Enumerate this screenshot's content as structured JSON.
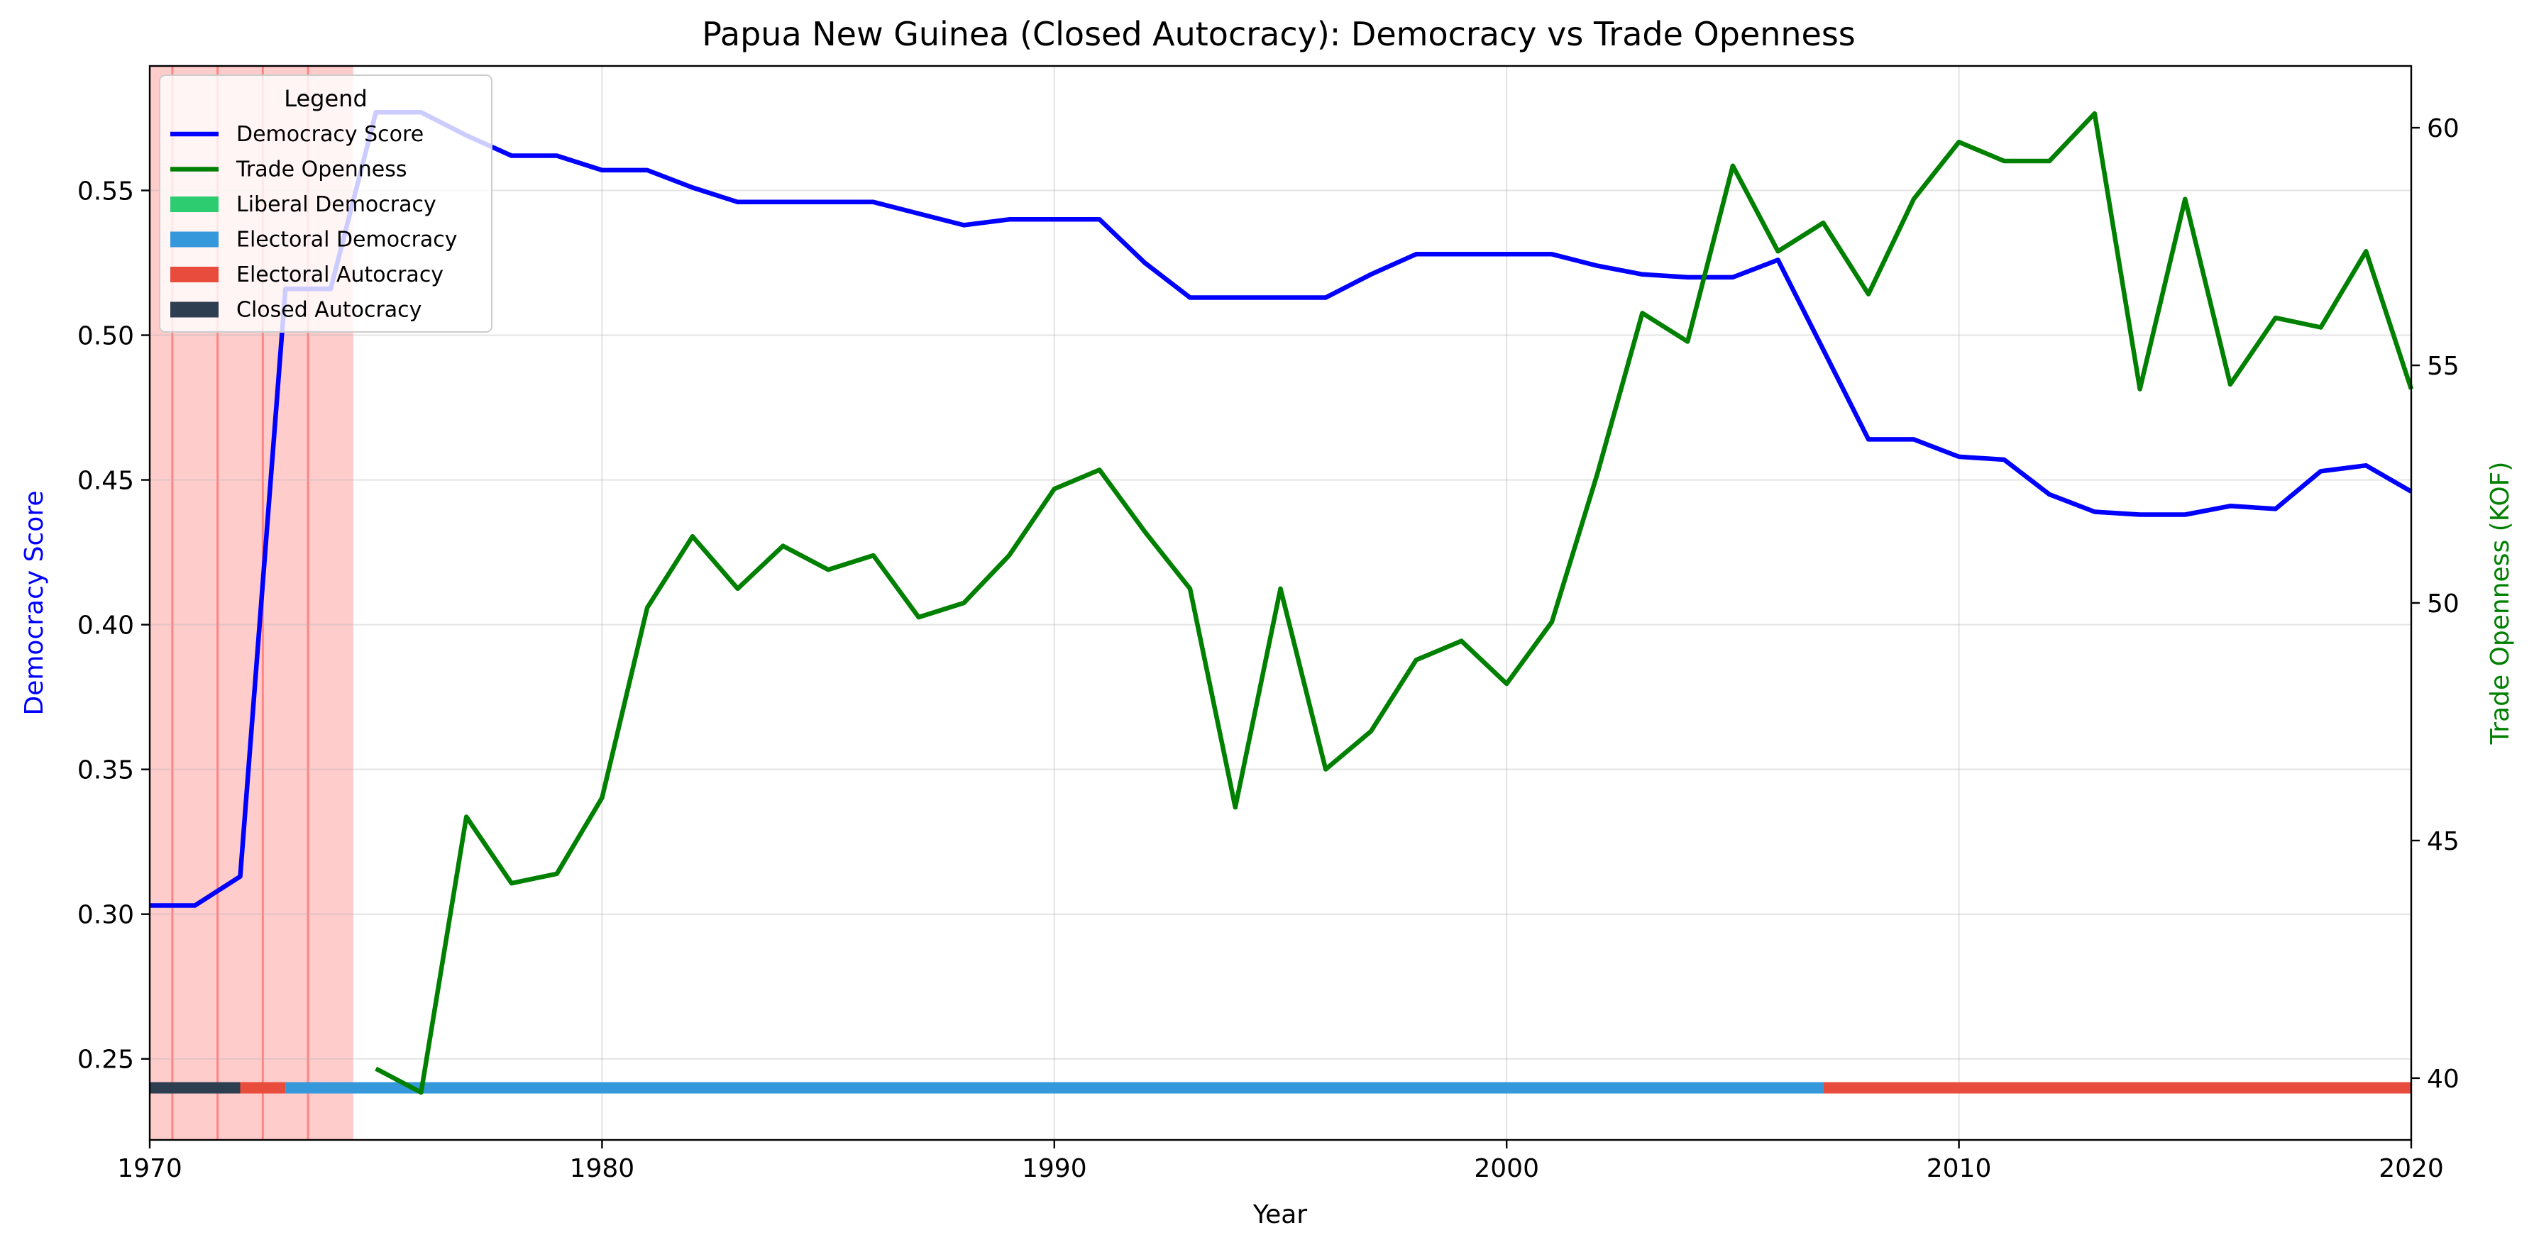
{
  "colors": {
    "democracy": "#0000ff",
    "trade": "#008000",
    "liberal_democracy": "#2ecc71",
    "electoral_democracy": "#3498db",
    "electoral_autocracy": "#e74c3c",
    "closed_autocracy": "#2c3e50",
    "highlight": "#ff0000",
    "grid": "#b0b0b0"
  },
  "chart_data": {
    "type": "line",
    "title": "Papua New Guinea (Closed Autocracy): Democracy vs Trade Openness",
    "xlabel": "Year",
    "ylabel_left": "Democracy Score",
    "ylabel_right": "Trade Openness (KOF)",
    "xlim": [
      1970,
      2020
    ],
    "ylim_left": [
      0.222,
      0.593
    ],
    "ylim_right": [
      38.7,
      61.3
    ],
    "x_ticks": [
      1970,
      1980,
      1990,
      2000,
      2010,
      2020
    ],
    "y_ticks_left": [
      0.25,
      0.3,
      0.35,
      0.4,
      0.45,
      0.5,
      0.55
    ],
    "y_ticks_right": [
      40,
      45,
      50,
      55,
      60
    ],
    "grid": true,
    "legend": {
      "title": "Legend",
      "placement": "top-left",
      "entries": [
        {
          "label": "Democracy Score",
          "kind": "line",
          "color": "#0000ff"
        },
        {
          "label": "Trade Openness",
          "kind": "line",
          "color": "#008000"
        },
        {
          "label": "Liberal Democracy",
          "kind": "patch",
          "color": "#2ecc71"
        },
        {
          "label": "Electoral Democracy",
          "kind": "patch",
          "color": "#3498db"
        },
        {
          "label": "Electoral Autocracy",
          "kind": "patch",
          "color": "#e74c3c"
        },
        {
          "label": "Closed Autocracy",
          "kind": "patch",
          "color": "#2c3e50"
        }
      ]
    },
    "highlight_span": {
      "x": [
        1970,
        1974.5
      ]
    },
    "highlight_lines": [
      1970.5,
      1971.5,
      1972.5,
      1973.5
    ],
    "regime_bar": [
      {
        "regime": "Closed Autocracy",
        "from": 1970,
        "to": 1972
      },
      {
        "regime": "Electoral Autocracy",
        "from": 1972,
        "to": 1973
      },
      {
        "regime": "Electoral Democracy",
        "from": 1973,
        "to": 2007
      },
      {
        "regime": "Electoral Autocracy",
        "from": 2007,
        "to": 2020
      }
    ],
    "series": [
      {
        "name": "Democracy Score",
        "axis": "left",
        "x": [
          1970,
          1971,
          1972,
          1973,
          1974,
          1975,
          1976,
          1977,
          1978,
          1979,
          1980,
          1981,
          1982,
          1983,
          1984,
          1985,
          1986,
          1987,
          1988,
          1989,
          1990,
          1991,
          1992,
          1993,
          1994,
          1995,
          1996,
          1997,
          1998,
          1999,
          2000,
          2001,
          2002,
          2003,
          2004,
          2005,
          2006,
          2007,
          2008,
          2009,
          2010,
          2011,
          2012,
          2013,
          2014,
          2015,
          2016,
          2017,
          2018,
          2019,
          2020
        ],
        "values": [
          0.303,
          0.303,
          0.313,
          0.516,
          0.516,
          0.577,
          0.577,
          0.569,
          0.562,
          0.562,
          0.557,
          0.557,
          0.551,
          0.546,
          0.546,
          0.546,
          0.546,
          0.542,
          0.538,
          0.54,
          0.54,
          0.54,
          0.525,
          0.513,
          0.513,
          0.513,
          0.513,
          0.521,
          0.528,
          0.528,
          0.528,
          0.528,
          0.524,
          0.521,
          0.52,
          0.52,
          0.526,
          0.495,
          0.464,
          0.464,
          0.458,
          0.457,
          0.445,
          0.439,
          0.438,
          0.438,
          0.441,
          0.44,
          0.453,
          0.455,
          0.446
        ]
      },
      {
        "name": "Trade Openness",
        "axis": "right",
        "x": [
          1975,
          1976,
          1977,
          1978,
          1979,
          1980,
          1981,
          1982,
          1983,
          1984,
          1985,
          1986,
          1987,
          1988,
          1989,
          1990,
          1991,
          1992,
          1993,
          1994,
          1995,
          1996,
          1997,
          1998,
          1999,
          2000,
          2001,
          2002,
          2003,
          2004,
          2005,
          2006,
          2007,
          2008,
          2009,
          2010,
          2011,
          2012,
          2013,
          2014,
          2015,
          2016,
          2017,
          2018,
          2019,
          2020
        ],
        "values": [
          40.2,
          39.7,
          45.5,
          44.1,
          44.3,
          45.9,
          49.9,
          51.4,
          50.3,
          51.2,
          50.7,
          51.0,
          49.7,
          50.0,
          51.0,
          52.4,
          52.8,
          51.5,
          50.3,
          45.7,
          50.3,
          46.5,
          47.3,
          48.8,
          49.2,
          48.3,
          49.6,
          52.7,
          56.1,
          55.5,
          59.2,
          57.4,
          58.0,
          56.5,
          58.5,
          59.7,
          59.3,
          59.3,
          60.3,
          54.5,
          58.5,
          54.6,
          56.0,
          55.8,
          57.4,
          54.5
        ]
      }
    ]
  }
}
